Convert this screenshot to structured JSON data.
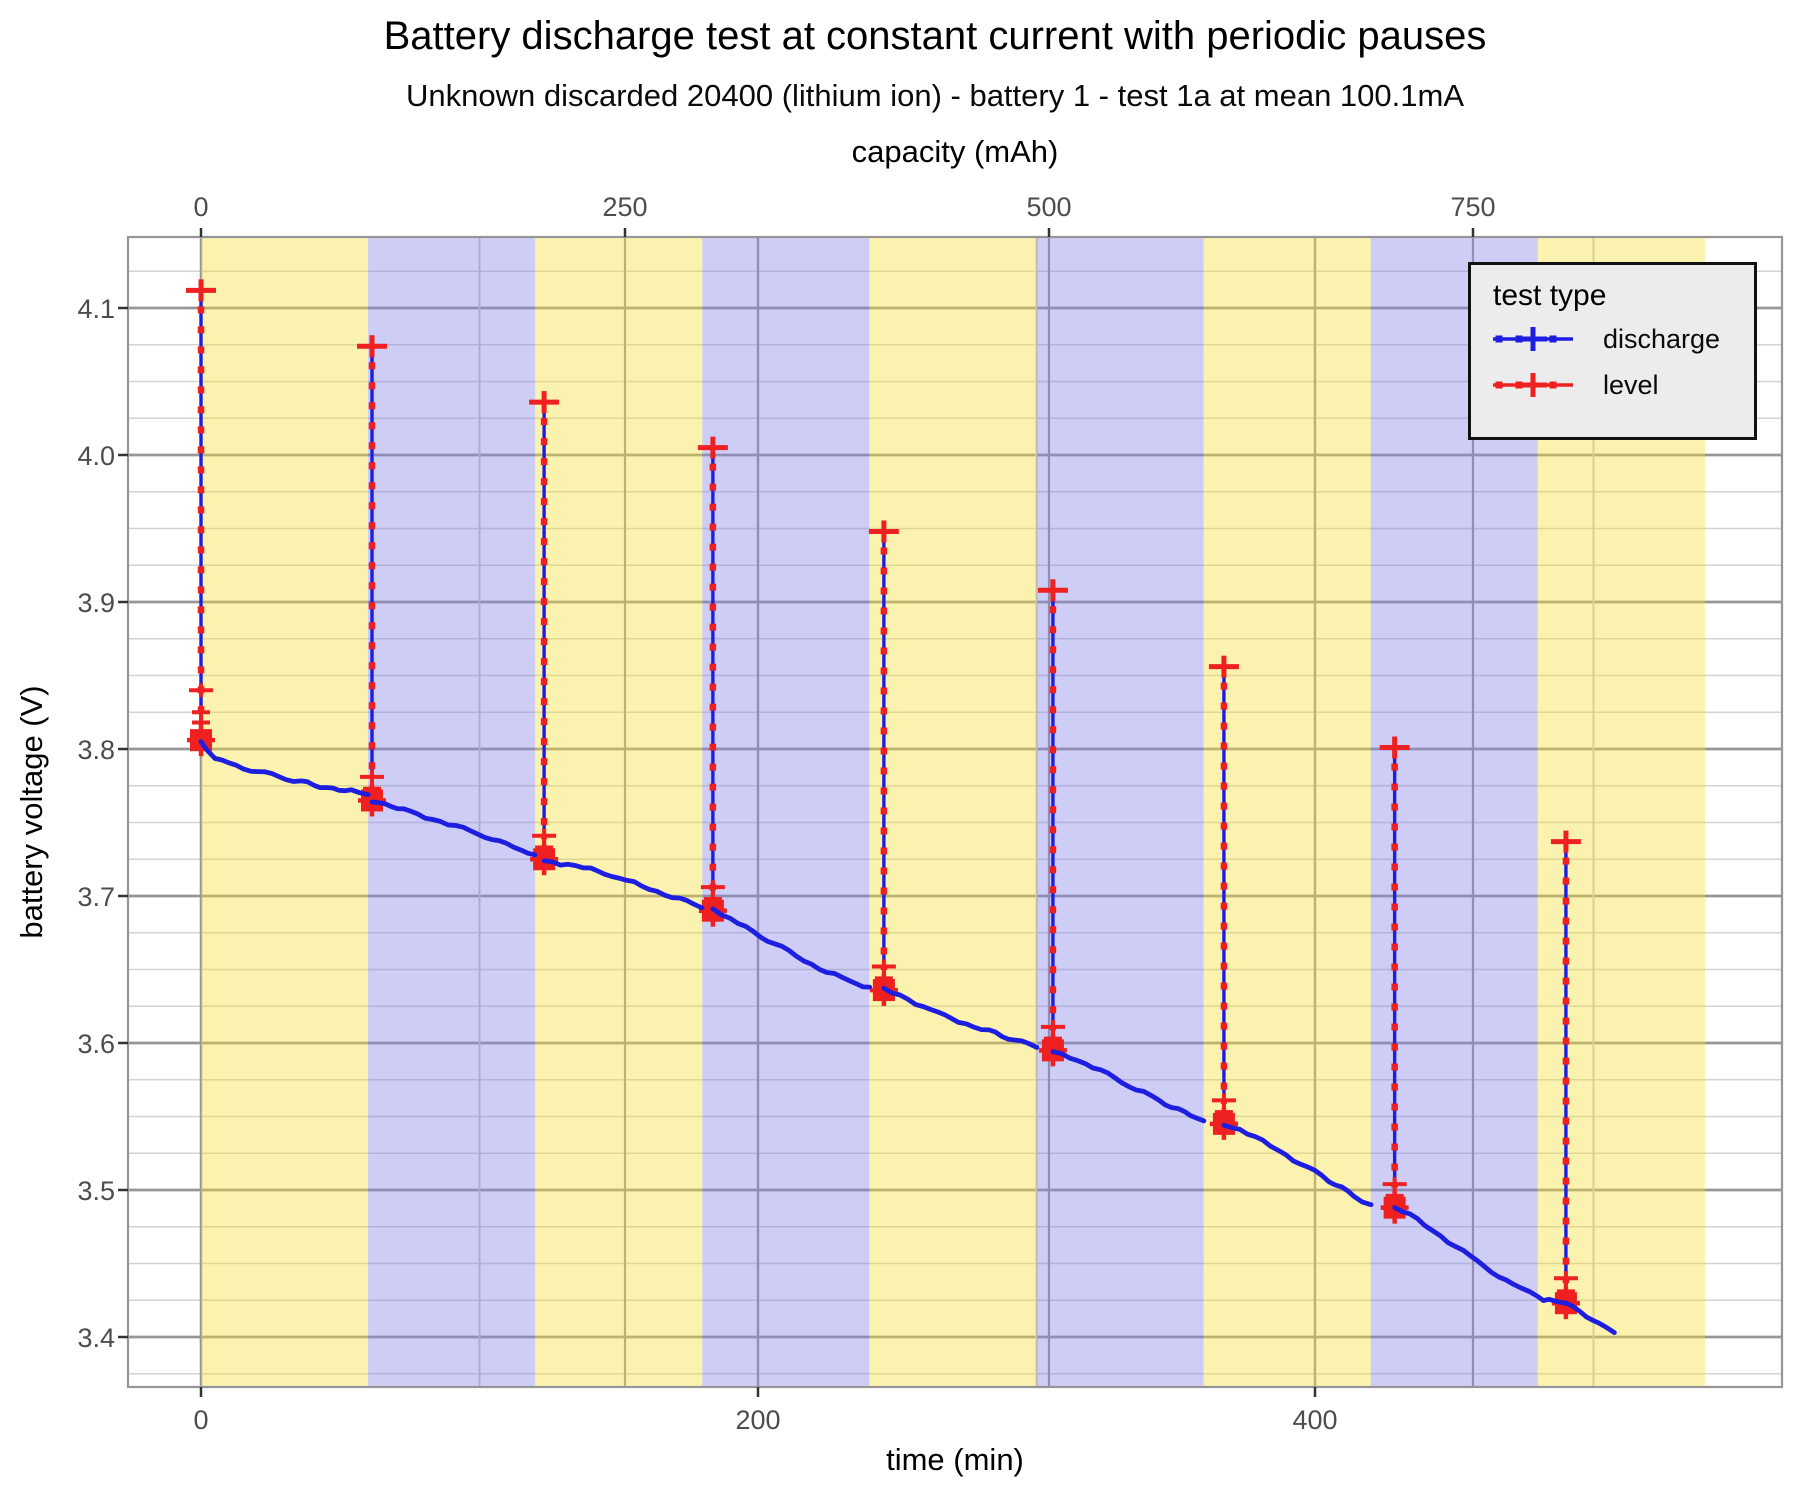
{
  "chart_data": {
    "type": "line",
    "title": "Battery discharge test at constant current with periodic pauses",
    "subtitle": "Unknown discarded 20400 (lithium ion) - battery 1 - test 1a at mean 100.1mA",
    "axes": {
      "top": {
        "label": "capacity (mAh)",
        "ticks": [
          0,
          250,
          500,
          750
        ],
        "tick_labels": [
          "0",
          "250",
          "500",
          "750"
        ],
        "domain_mAh": [
          -43,
          932
        ]
      },
      "bottom": {
        "label": "time (min)",
        "ticks": [
          0,
          200,
          400
        ],
        "tick_labels": [
          "0",
          "200",
          "400"
        ],
        "minor_ticks": [
          100,
          300,
          500
        ],
        "domain_min": [
          -26.2,
          567.6
        ]
      },
      "left": {
        "label": "battery voltage (V)",
        "ticks": [
          3.4,
          3.5,
          3.6,
          3.7,
          3.8,
          3.9,
          4.0,
          4.1
        ],
        "tick_labels": [
          "3.4",
          "3.5",
          "3.6",
          "3.7",
          "3.8",
          "3.9",
          "4.0",
          "4.1"
        ],
        "minor_step": 0.025,
        "domain_V": [
          3.366,
          4.148
        ]
      }
    },
    "bands": {
      "period_min": 60,
      "count": 9,
      "start_min": 0,
      "color_odd_segment": "#faf2ae",
      "color_even_segment": "#cdcdf5",
      "fill_odd_rgba": [
        245,
        223,
        55,
        0.4
      ],
      "fill_even_rgba": [
        130,
        130,
        230,
        0.4
      ]
    },
    "grid": {
      "major_color": "#969696",
      "minor_color": "#d3d3d3",
      "on": true
    },
    "legend": {
      "title": "test type",
      "position": "top-right",
      "items": [
        {
          "label": "discharge",
          "color": "#1e1ee0"
        },
        {
          "label": "level",
          "color": "#ee2020"
        }
      ]
    },
    "series_colors": {
      "discharge": "#1e1ee0",
      "level": "#ee2020"
    },
    "pauses": [
      {
        "t_min": 0.0,
        "base_V": 3.806,
        "top_V": 4.112,
        "relax_marks_V": [
          3.84,
          3.825,
          3.818,
          3.812
        ]
      },
      {
        "t_min": 61.4,
        "base_V": 3.765,
        "top_V": 4.074,
        "relax_marks_V": [
          3.781,
          3.773
        ]
      },
      {
        "t_min": 123.2,
        "base_V": 3.725,
        "top_V": 4.036,
        "relax_marks_V": [
          3.741,
          3.733
        ]
      },
      {
        "t_min": 183.8,
        "base_V": 3.69,
        "top_V": 4.005,
        "relax_marks_V": [
          3.706,
          3.698
        ]
      },
      {
        "t_min": 245.2,
        "base_V": 3.636,
        "top_V": 3.948,
        "relax_marks_V": [
          3.652,
          3.644
        ]
      },
      {
        "t_min": 305.9,
        "base_V": 3.595,
        "top_V": 3.908,
        "relax_marks_V": [
          3.611,
          3.603
        ]
      },
      {
        "t_min": 367.3,
        "base_V": 3.545,
        "top_V": 3.856,
        "relax_marks_V": [
          3.561,
          3.553
        ]
      },
      {
        "t_min": 428.6,
        "base_V": 3.488,
        "top_V": 3.801,
        "relax_marks_V": [
          3.504,
          3.496
        ]
      },
      {
        "t_min": 490.1,
        "base_V": 3.423,
        "top_V": 3.737,
        "relax_marks_V": [
          3.44,
          3.431
        ]
      }
    ],
    "discharge_segments": [
      [
        [
          0,
          3.806
        ],
        [
          2,
          3.799
        ],
        [
          5,
          3.794
        ],
        [
          10,
          3.79
        ],
        [
          18,
          3.786
        ],
        [
          28,
          3.781
        ],
        [
          36,
          3.778
        ],
        [
          45,
          3.774
        ],
        [
          54,
          3.771
        ],
        [
          60,
          3.769
        ]
      ],
      [
        [
          61.4,
          3.765
        ],
        [
          66,
          3.762
        ],
        [
          75,
          3.757
        ],
        [
          86,
          3.751
        ],
        [
          97,
          3.744
        ],
        [
          107,
          3.737
        ],
        [
          115,
          3.731
        ],
        [
          119.9,
          3.728
        ]
      ],
      [
        [
          123.2,
          3.725
        ],
        [
          129,
          3.722
        ],
        [
          140,
          3.718
        ],
        [
          150,
          3.712
        ],
        [
          161,
          3.705
        ],
        [
          172,
          3.698
        ],
        [
          179.9,
          3.692
        ]
      ],
      [
        [
          183.8,
          3.69
        ],
        [
          190,
          3.684
        ],
        [
          201,
          3.673
        ],
        [
          211,
          3.662
        ],
        [
          222,
          3.651
        ],
        [
          233,
          3.642
        ],
        [
          240.1,
          3.638
        ]
      ],
      [
        [
          245.2,
          3.636
        ],
        [
          251,
          3.632
        ],
        [
          262,
          3.623
        ],
        [
          272,
          3.615
        ],
        [
          283,
          3.608
        ],
        [
          292,
          3.602
        ],
        [
          300.1,
          3.597
        ]
      ],
      [
        [
          305.9,
          3.595
        ],
        [
          312,
          3.591
        ],
        [
          323,
          3.581
        ],
        [
          333,
          3.571
        ],
        [
          344,
          3.561
        ],
        [
          353,
          3.553
        ],
        [
          360.1,
          3.547
        ]
      ],
      [
        [
          367.3,
          3.545
        ],
        [
          373,
          3.541
        ],
        [
          384,
          3.53
        ],
        [
          395,
          3.518
        ],
        [
          405,
          3.506
        ],
        [
          414,
          3.496
        ],
        [
          420.1,
          3.49
        ]
      ],
      [
        [
          428.6,
          3.488
        ],
        [
          434,
          3.483
        ],
        [
          445,
          3.469
        ],
        [
          456,
          3.455
        ],
        [
          466,
          3.441
        ],
        [
          474,
          3.433
        ],
        [
          480,
          3.427
        ],
        [
          484,
          3.425
        ],
        [
          490.1,
          3.423
        ]
      ],
      [
        [
          490.1,
          3.423
        ],
        [
          495,
          3.418
        ],
        [
          502,
          3.409
        ],
        [
          507.5,
          3.403
        ]
      ]
    ]
  }
}
